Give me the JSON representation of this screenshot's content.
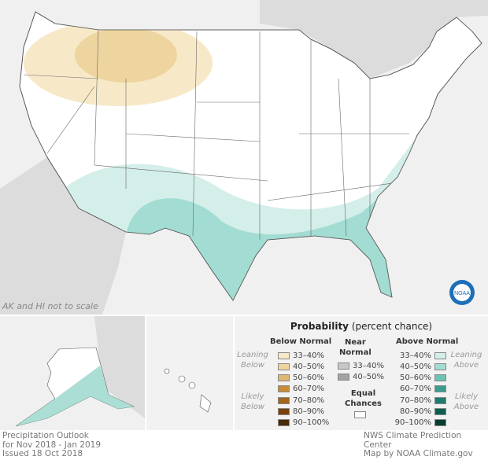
{
  "map": {
    "note": "AK and HI not to scale",
    "logo": "NOAA"
  },
  "title": {
    "line1": "Precipitation Outlook",
    "line2": "for Nov 2018 - Jan 2019",
    "line3": "Issued 18 Oct 2018"
  },
  "credit": {
    "line1": "NWS Climate Prediction Center",
    "line2": "Map by NOAA Climate.gov"
  },
  "legend": {
    "title_bold": "Probability",
    "title_rest": " (percent chance)",
    "below": {
      "header": "Below Normal",
      "leaning": "Leaning Below",
      "likely": "Likely Below",
      "items": [
        {
          "label": "33–40%",
          "color": "#f7e9c8"
        },
        {
          "label": "40–50%",
          "color": "#eed59f"
        },
        {
          "label": "50–60%",
          "color": "#dfb872"
        },
        {
          "label": "60–70%",
          "color": "#c98b36"
        },
        {
          "label": "70–80%",
          "color": "#a5651b"
        },
        {
          "label": "80–90%",
          "color": "#7a4209"
        },
        {
          "label": "90–100%",
          "color": "#4b2a06"
        }
      ]
    },
    "near": {
      "header_line1": "Near",
      "header_line2": "Normal",
      "items": [
        {
          "label": "33–40%",
          "color": "#c8c8c8"
        },
        {
          "label": "40–50%",
          "color": "#a3a3a3"
        }
      ]
    },
    "equal": {
      "line1": "Equal",
      "line2": "Chances",
      "color": "#ffffff"
    },
    "above": {
      "header": "Above Normal",
      "leaning": "Leaning Above",
      "likely": "Likely Above",
      "items": [
        {
          "label": "33–40%",
          "color": "#d4eeea"
        },
        {
          "label": "40–50%",
          "color": "#a2dcd2"
        },
        {
          "label": "50–60%",
          "color": "#6cc3b3"
        },
        {
          "label": "60–70%",
          "color": "#3a9d8f"
        },
        {
          "label": "70–80%",
          "color": "#1f7d6f"
        },
        {
          "label": "80–90%",
          "color": "#0d5f50"
        },
        {
          "label": "90–100%",
          "color": "#053d31"
        }
      ]
    }
  }
}
